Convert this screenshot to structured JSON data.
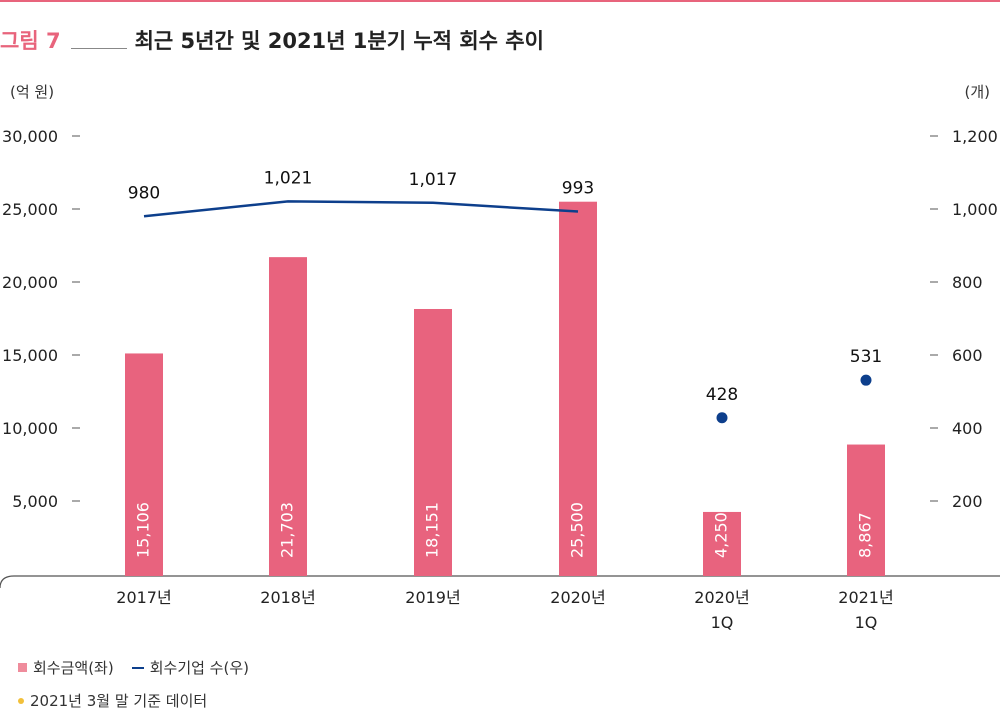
{
  "figure": {
    "label": "그림 7",
    "title": "최근 5년간 및 2021년 1분기 누적 회수 추이"
  },
  "chart_data": {
    "type": "bar",
    "categories": [
      [
        "2017년"
      ],
      [
        "2018년"
      ],
      [
        "2019년"
      ],
      [
        "2020년"
      ],
      [
        "2020년",
        "1Q"
      ],
      [
        "2021년",
        "1Q"
      ]
    ],
    "y_left": {
      "label": "(억 원)",
      "range": [
        0,
        30000
      ],
      "ticks": [
        "30,000",
        "25,000",
        "20,000",
        "15,000",
        "10,000",
        "5,000"
      ],
      "tick_values": [
        30000,
        25000,
        20000,
        15000,
        10000,
        5000
      ]
    },
    "y_right": {
      "label": "(개)",
      "range": [
        0,
        1200
      ],
      "ticks": [
        "1,200",
        "1,000",
        "800",
        "600",
        "400",
        "200"
      ],
      "tick_values": [
        1200,
        1000,
        800,
        600,
        400,
        200
      ]
    },
    "series": [
      {
        "name": "회수금액(좌)",
        "kind": "bar",
        "axis": "left",
        "color": "#e8637e",
        "values": [
          15106,
          21703,
          18151,
          25500,
          4250,
          8867
        ],
        "labels": [
          "15,106",
          "21,703",
          "18,151",
          "25,500",
          "4,250",
          "8,867"
        ]
      },
      {
        "name": "회수기업 수(우)",
        "kind": "line",
        "axis": "right",
        "color": "#0d3f8c",
        "values": [
          980,
          1021,
          1017,
          993,
          428,
          531
        ],
        "labels": [
          "980",
          "1,021",
          "1,017",
          "993",
          "428",
          "531"
        ],
        "line_segment_count": 4
      }
    ],
    "grid": false,
    "legend_position": "bottom-left"
  },
  "note": "2021년 3월 말 기준 데이터"
}
